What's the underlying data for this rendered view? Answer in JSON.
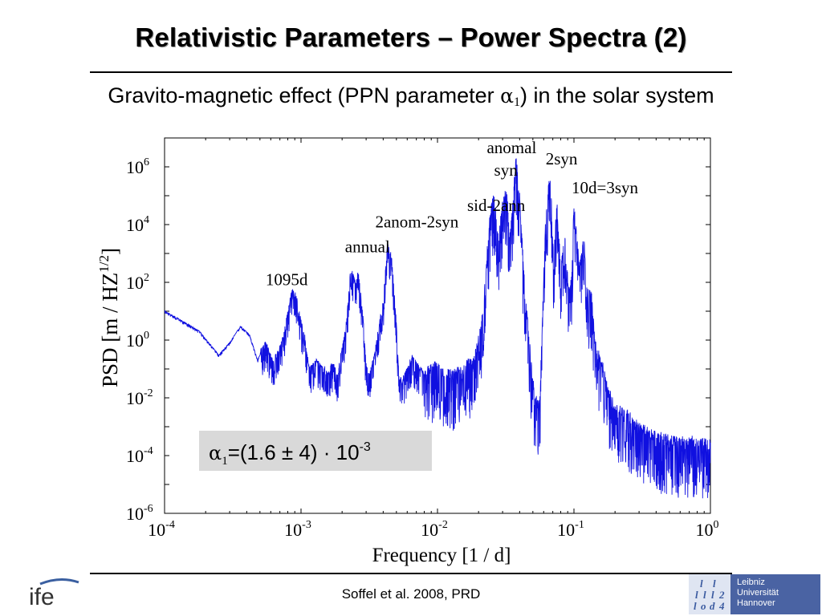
{
  "slide": {
    "title": "Relativistic Parameters – Power Spectra (2)",
    "subtitle_pre": "Gravito-magnetic effect (PPN parameter ",
    "subtitle_symbol": "α",
    "subtitle_sub": "1",
    "subtitle_post": ") in the solar system",
    "citation": "Soffel et al. 2008, PRD",
    "logo_left_text": "ife",
    "logo_right_lines": [
      "Leibniz",
      "Universität",
      "Hannover"
    ],
    "logo_right_emblem": [
      "l",
      "l",
      "l",
      "l",
      "l",
      "2",
      "l",
      "o",
      "d",
      "4"
    ]
  },
  "chart_data": {
    "type": "line",
    "x_scale": "log",
    "y_scale": "log",
    "xlim": [
      0.0001,
      1
    ],
    "ylim": [
      1e-06,
      10000000
    ],
    "xlabel": "Frequency [1 / d]",
    "ylabel_main": "PSD [m / HZ",
    "ylabel_sup": "1/2",
    "ylabel_end": "]",
    "x_ticks": [
      {
        "base": "10",
        "exp": "-4"
      },
      {
        "base": "10",
        "exp": "-3"
      },
      {
        "base": "10",
        "exp": "-2"
      },
      {
        "base": "10",
        "exp": "-1"
      },
      {
        "base": "10",
        "exp": "0"
      }
    ],
    "y_ticks": [
      {
        "base": "10",
        "exp": "-6"
      },
      {
        "base": "10",
        "exp": "-4"
      },
      {
        "base": "10",
        "exp": "-2"
      },
      {
        "base": "10",
        "exp": "0"
      },
      {
        "base": "10",
        "exp": "2"
      },
      {
        "base": "10",
        "exp": "4"
      },
      {
        "base": "10",
        "exp": "6"
      }
    ],
    "grid": false,
    "series_color": "#1010e0",
    "series": [
      {
        "x": [
          0.0001,
          0.00013,
          0.00018,
          0.00025,
          0.0003,
          0.00036,
          0.00042,
          0.00048,
          0.00055,
          0.00062,
          0.00068,
          0.00074,
          0.0008,
          0.00086,
          0.00092,
          0.00098,
          0.00106,
          0.00115,
          0.0013,
          0.00145,
          0.00158,
          0.0017,
          0.00185,
          0.002,
          0.00215,
          0.0023,
          0.0024,
          0.00252,
          0.00262,
          0.00272,
          0.00285,
          0.003,
          0.0032,
          0.0034,
          0.0037,
          0.004,
          0.0043,
          0.0046,
          0.0048,
          0.005,
          0.0052,
          0.0055,
          0.006,
          0.0065,
          0.0072,
          0.0082,
          0.0095,
          0.011,
          0.013,
          0.015,
          0.017,
          0.019,
          0.021,
          0.023,
          0.0245,
          0.026,
          0.028,
          0.03,
          0.032,
          0.034,
          0.036,
          0.0375,
          0.04,
          0.043,
          0.047,
          0.051,
          0.056,
          0.062,
          0.066,
          0.068,
          0.071,
          0.075,
          0.08,
          0.086,
          0.092,
          0.097,
          0.1,
          0.104,
          0.11,
          0.118,
          0.125,
          0.135,
          0.145,
          0.16,
          0.18,
          0.2,
          0.24,
          0.3,
          0.4,
          0.55,
          0.75,
          1.0
        ],
        "y": [
          10,
          5,
          2,
          0.3,
          0.8,
          3,
          1.5,
          0.2,
          0.7,
          0.15,
          0.3,
          1,
          8,
          40,
          30,
          5,
          1.2,
          0.08,
          0.15,
          0.1,
          0.06,
          0.12,
          0.05,
          0.4,
          3,
          200,
          150,
          60,
          180,
          40,
          5,
          0.1,
          0.05,
          0.2,
          2,
          15,
          1500,
          600,
          40,
          3,
          0.05,
          0.03,
          0.08,
          0.2,
          0.1,
          0.05,
          0.08,
          0.05,
          0.04,
          0.06,
          0.1,
          0.2,
          2,
          500,
          20000,
          60000,
          2000,
          30000,
          100000,
          2000,
          60000,
          1500000,
          50000,
          100,
          0.5,
          0.01,
          0.003,
          10000,
          200000,
          100000,
          500,
          30000,
          200,
          3000,
          20,
          300,
          30000,
          3000,
          200,
          2000,
          30,
          20,
          0.3,
          0.1,
          0.01,
          0.003,
          0.002,
          0.0006,
          0.0003,
          0.0002,
          0.0002,
          0.00015
        ]
      }
    ],
    "annotations": [
      {
        "text": "1095d",
        "x": 0.00055,
        "y": 80
      },
      {
        "text": "2anom-2syn",
        "x": 0.0035,
        "y": 8000
      },
      {
        "text": "annual",
        "x": 0.0021,
        "y": 1100
      },
      {
        "text": "sid-2ann",
        "x": 0.0165,
        "y": 30000
      },
      {
        "text": "anomal",
        "x": 0.023,
        "y": 3000000
      },
      {
        "text": "syn",
        "x": 0.026,
        "y": 500000
      },
      {
        "text": "2syn",
        "x": 0.062,
        "y": 1200000
      },
      {
        "text": "10d=3syn",
        "x": 0.096,
        "y": 120000
      }
    ],
    "result_box": {
      "symbol": "α",
      "sub": "1",
      "text": "=(1.6 ± 4) · 10",
      "exp": "-3",
      "background": "#d9d9d9"
    }
  }
}
